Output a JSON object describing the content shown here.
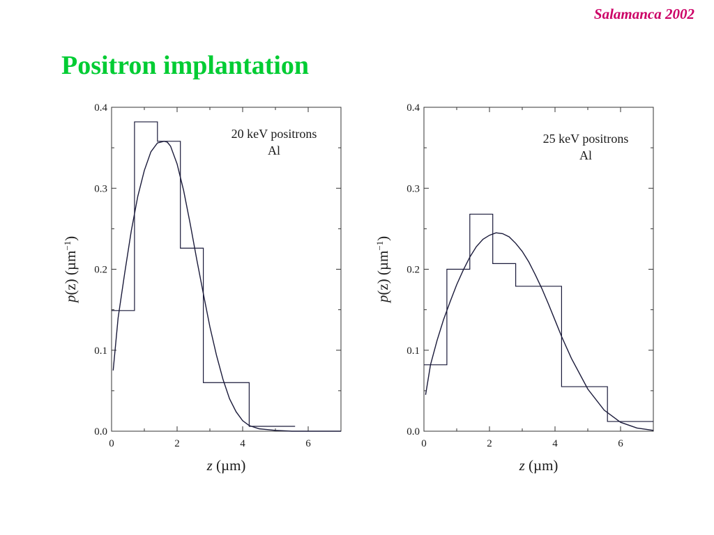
{
  "header": {
    "tag": "Salamanca 2002"
  },
  "title": "Positron implantation",
  "colors": {
    "title": "#00cc33",
    "tag": "#cc0066",
    "ink": "#1a1a3a"
  },
  "chart_data": [
    {
      "type": "line",
      "annotation": [
        "20 keV positrons",
        "Al"
      ],
      "xlabel_var": "z",
      "xlabel_unit": " (µm)",
      "ylabel_var": "p",
      "ylabel_arg": "(z)",
      "ylabel_unit": "(µm",
      "ylabel_exp": "−1",
      "ylabel_close": ")",
      "xlim": [
        0,
        7
      ],
      "ylim": [
        0,
        0.4
      ],
      "xticks": [
        0,
        2,
        4,
        6
      ],
      "yticks": [
        0.0,
        0.1,
        0.2,
        0.3,
        0.4
      ],
      "ytick_labels": [
        "0.0",
        "0.1",
        "0.2",
        "0.3",
        "0.4"
      ],
      "histogram": {
        "edges": [
          0,
          0.7,
          1.4,
          2.1,
          2.8,
          4.2,
          5.6
        ],
        "values": [
          0.149,
          0.382,
          0.358,
          0.226,
          0.06,
          0.006
        ]
      },
      "curve": {
        "x": [
          0.05,
          0.2,
          0.4,
          0.6,
          0.8,
          1.0,
          1.2,
          1.4,
          1.6,
          1.7,
          1.8,
          2.0,
          2.2,
          2.4,
          2.6,
          2.8,
          3.0,
          3.2,
          3.4,
          3.6,
          3.8,
          4.0,
          4.2,
          4.5,
          5.0,
          5.5,
          6.0,
          7.0
        ],
        "y": [
          0.075,
          0.14,
          0.195,
          0.247,
          0.29,
          0.322,
          0.345,
          0.356,
          0.358,
          0.357,
          0.352,
          0.33,
          0.297,
          0.256,
          0.212,
          0.17,
          0.129,
          0.094,
          0.064,
          0.04,
          0.024,
          0.013,
          0.007,
          0.003,
          0.001,
          0.0,
          0.0,
          0.0
        ]
      }
    },
    {
      "type": "line",
      "annotation": [
        "25 keV positrons",
        "Al"
      ],
      "xlabel_var": "z",
      "xlabel_unit": " (µm)",
      "ylabel_var": "p",
      "ylabel_arg": "(z)",
      "ylabel_unit": "(µm",
      "ylabel_exp": "−1",
      "ylabel_close": ")",
      "xlim": [
        0,
        7
      ],
      "ylim": [
        0,
        0.4
      ],
      "xticks": [
        0,
        2,
        4,
        6
      ],
      "yticks": [
        0.0,
        0.1,
        0.2,
        0.3,
        0.4
      ],
      "ytick_labels": [
        "0.0",
        "0.1",
        "0.2",
        "0.3",
        "0.4"
      ],
      "histogram": {
        "edges": [
          0,
          0.7,
          1.4,
          2.1,
          2.8,
          4.2,
          5.6,
          7.0
        ],
        "values": [
          0.082,
          0.2,
          0.268,
          0.207,
          0.179,
          0.055,
          0.012
        ]
      },
      "curve": {
        "x": [
          0.05,
          0.2,
          0.4,
          0.6,
          0.8,
          1.0,
          1.2,
          1.4,
          1.6,
          1.8,
          2.0,
          2.2,
          2.4,
          2.6,
          2.8,
          3.0,
          3.2,
          3.4,
          3.6,
          3.8,
          4.0,
          4.2,
          4.5,
          5.0,
          5.5,
          6.0,
          6.5,
          7.0
        ],
        "y": [
          0.045,
          0.082,
          0.112,
          0.138,
          0.16,
          0.181,
          0.199,
          0.215,
          0.228,
          0.237,
          0.242,
          0.245,
          0.244,
          0.24,
          0.232,
          0.222,
          0.209,
          0.193,
          0.176,
          0.157,
          0.137,
          0.117,
          0.09,
          0.052,
          0.026,
          0.011,
          0.004,
          0.001
        ]
      }
    }
  ]
}
